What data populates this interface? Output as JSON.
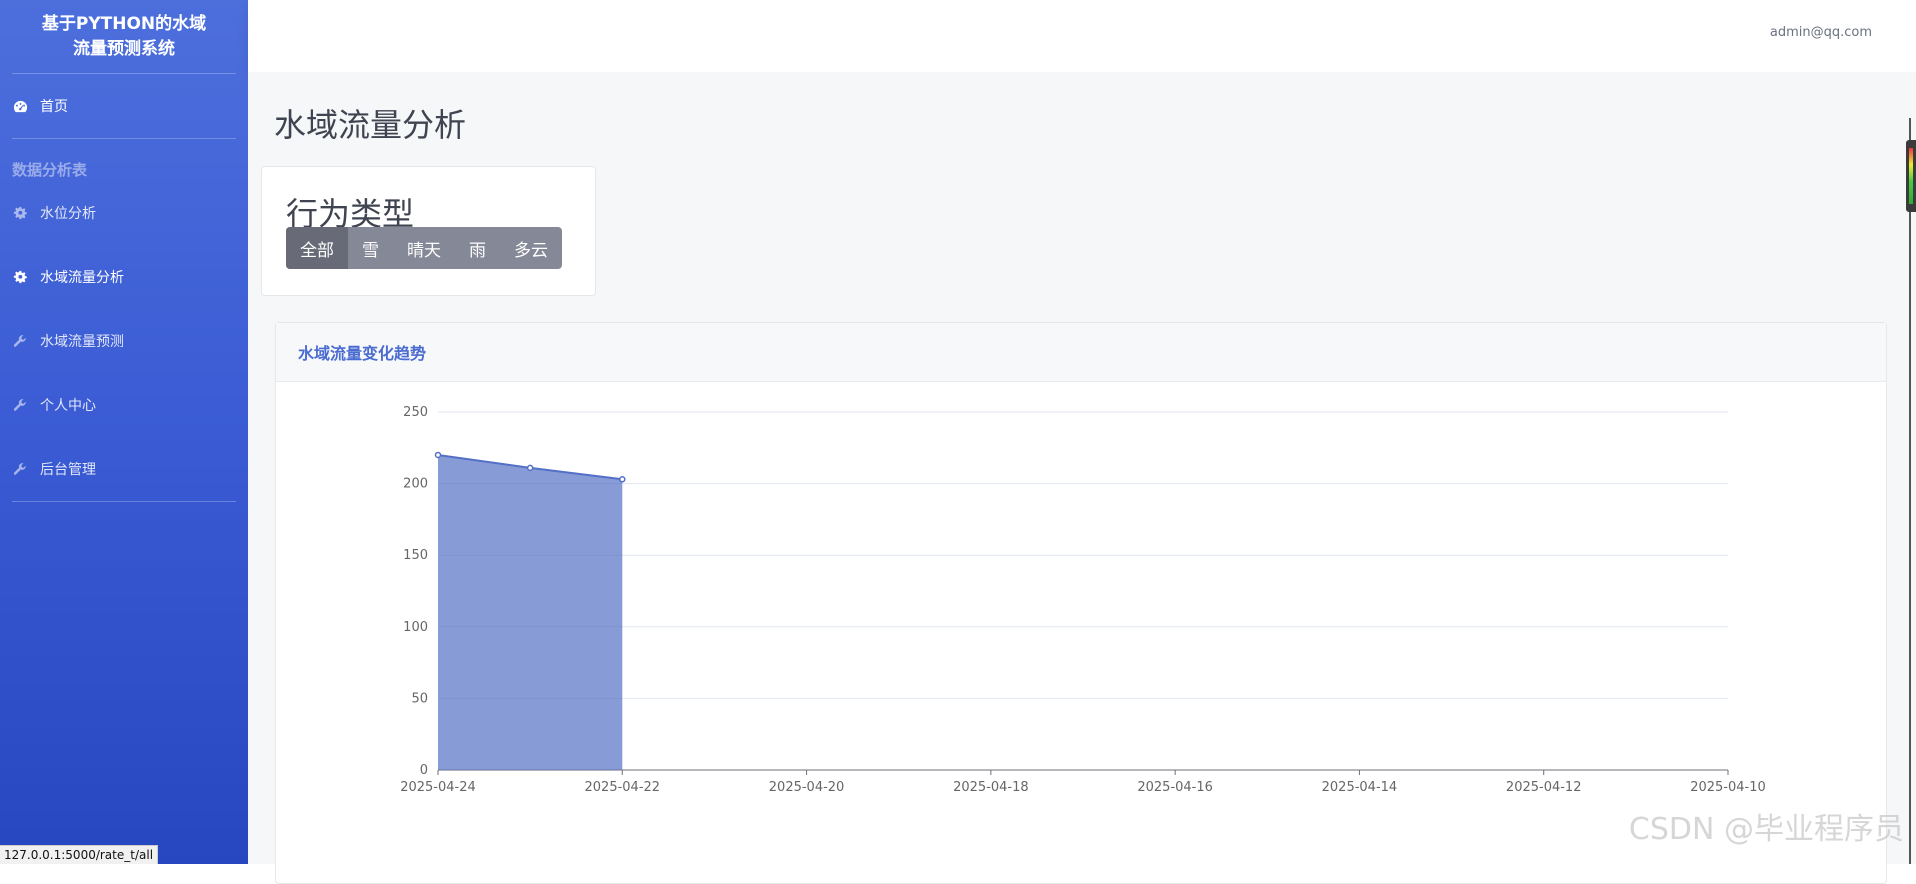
{
  "sidebar": {
    "brand_line1": "基于PYTHON的水域",
    "brand_line2": "流量预测系统",
    "home": "首页",
    "section": "数据分析表",
    "items": [
      {
        "label": "水位分析",
        "icon": "gear-icon"
      },
      {
        "label": "水域流量分析",
        "icon": "gear-icon"
      },
      {
        "label": "水域流量预测",
        "icon": "wrench-icon"
      },
      {
        "label": "个人中心",
        "icon": "wrench-icon"
      },
      {
        "label": "后台管理",
        "icon": "wrench-icon"
      }
    ]
  },
  "topbar": {
    "user": "admin@qq.com"
  },
  "page": {
    "title": "水域流量分析"
  },
  "filter": {
    "label": "行为类型",
    "buttons": [
      "全部",
      "雪",
      "晴天",
      "雨",
      "多云"
    ],
    "active": "全部"
  },
  "chart_card": {
    "title": "水域流量变化趋势"
  },
  "chart_data": {
    "type": "area",
    "x": [
      "2025-04-24",
      "2025-04-23",
      "2025-04-22"
    ],
    "values": [
      220,
      211,
      203
    ],
    "x_ticks": [
      "2025-04-24",
      "2025-04-22",
      "2025-04-20",
      "2025-04-18",
      "2025-04-16",
      "2025-04-14",
      "2025-04-12",
      "2025-04-10"
    ],
    "y_ticks": [
      0,
      50,
      100,
      150,
      200,
      250
    ],
    "ylim": [
      0,
      250
    ],
    "xlim": [
      "2025-04-24",
      "2025-04-10"
    ],
    "color": "#5470c6",
    "grid": true
  },
  "watermark": "CSDN @毕业程序员",
  "status_url": "127.0.0.1:5000/rate_t/all"
}
